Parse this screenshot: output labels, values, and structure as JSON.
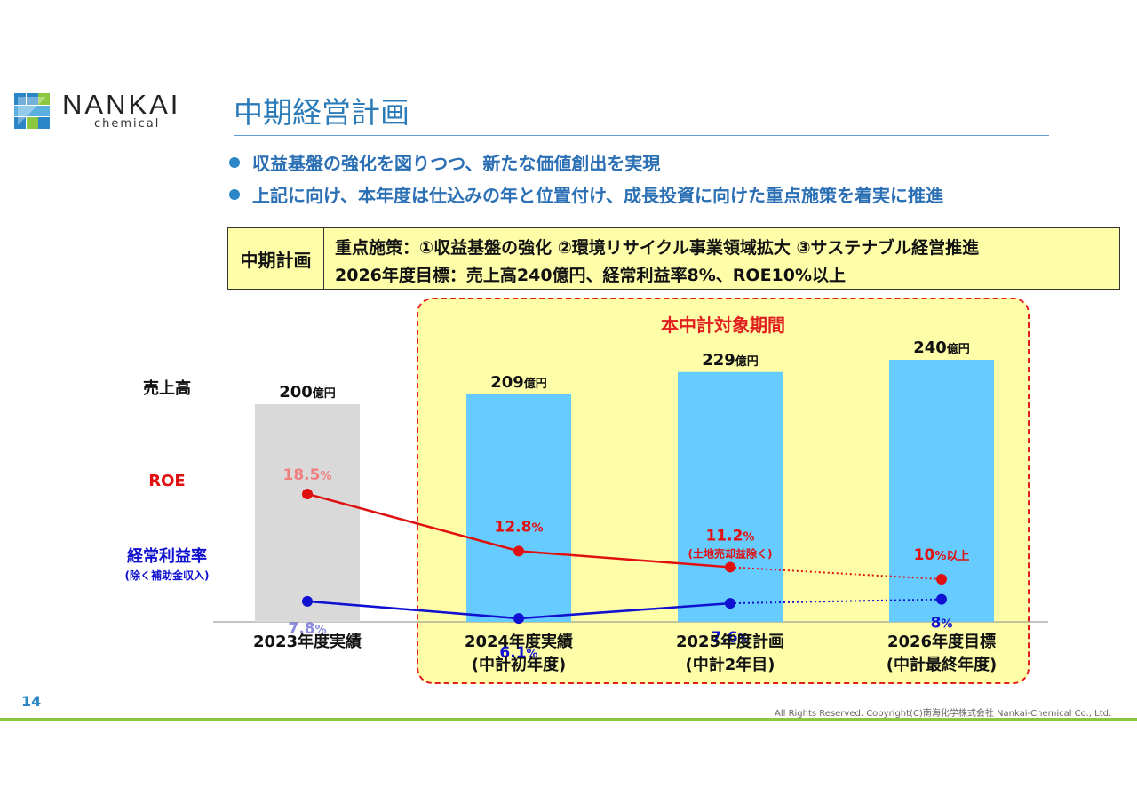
{
  "logo": {
    "name": "NANKAI",
    "sub": "chemical"
  },
  "page_title": "中期経営計画",
  "bullets": [
    "収益基盤の強化を図りつつ、新たな価値創出を実現",
    "上記に向け、本年度は仕込みの年と位置付け、成長投資に向けた重点施策を着実に推進"
  ],
  "plan": {
    "label": "中期計画",
    "line1": "重点施策：①収益基盤の強化 ②環境リサイクル事業領域拡大 ③サステナブル経営推進",
    "line2": "2026年度目標：売上高240億円、経常利益率8%、ROE10%以上"
  },
  "period_label": "本中計対象期間",
  "chart_data": {
    "type": "bar",
    "categories": [
      [
        "2023年度実績"
      ],
      [
        "2024年度実績",
        "(中計初年度)"
      ],
      [
        "2025年度計画",
        "(中計2年目)"
      ],
      [
        "2026年度目標",
        "(中計最終年度)"
      ]
    ],
    "bar_series": {
      "name": "売上高",
      "values": [
        200,
        209,
        229,
        240
      ],
      "labels": [
        "200",
        "209",
        "229",
        "240"
      ],
      "unit": "億円",
      "colors": [
        "#d9d9d9",
        "#66ccff",
        "#66ccff",
        "#66ccff"
      ]
    },
    "line_series": [
      {
        "name": "ROE",
        "values": [
          18.5,
          12.8,
          11.2,
          10
        ],
        "labels": [
          "18.5",
          "12.8",
          "11.2",
          "10"
        ],
        "suffixes": [
          "%",
          "%",
          "%",
          "%以上"
        ],
        "notes": [
          "",
          "",
          "(土地売却益除く)",
          ""
        ],
        "color": "#e01010",
        "label_colors": [
          "#f08080",
          "#e01010",
          "#e01010",
          "#e01010"
        ],
        "dotted_last_segment": true
      },
      {
        "name": "経常利益率",
        "sub": "(除く補助金収入)",
        "values": [
          7.8,
          6.1,
          7.6,
          8
        ],
        "labels": [
          "7.8",
          "6.1",
          "7.6",
          "8"
        ],
        "suffixes": [
          "%",
          "%",
          "%",
          "%"
        ],
        "notes": [
          "",
          "",
          "",
          ""
        ],
        "color": "#1010d0",
        "label_colors": [
          "#8a8ae0",
          "#1010d0",
          "#1010d0",
          "#1010d0"
        ],
        "dotted_last_segment": true
      }
    ]
  },
  "page_number": "14",
  "copyright": "All Rights Reserved. Copyright(C)南海化学株式会社 Nankai-Chemical Co., Ltd."
}
